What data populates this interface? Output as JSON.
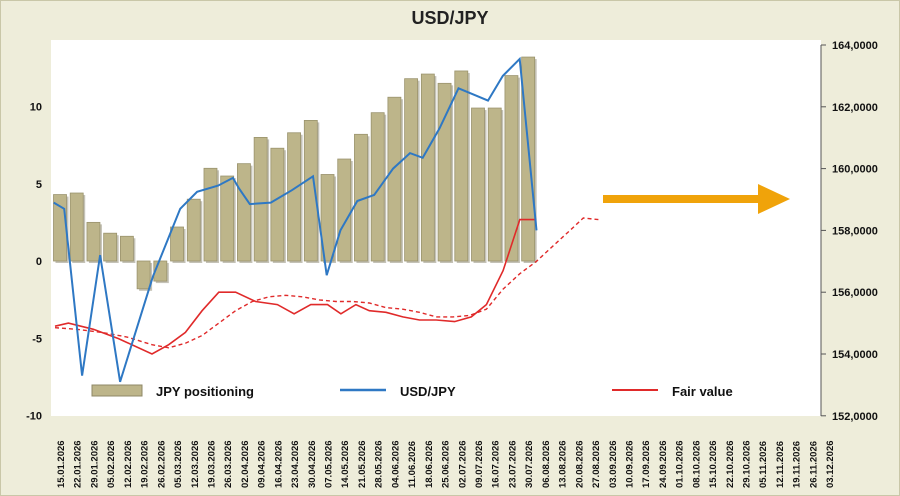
{
  "chart_data": {
    "type": "bar",
    "title": "USD/JPY",
    "xlabel": "",
    "ylabel": "",
    "ylim": [
      -10,
      14
    ],
    "y2lim": [
      152,
      164
    ],
    "yticks": [
      "10",
      "5",
      "0",
      "-5",
      "-10"
    ],
    "y2ticks": [
      "164,0000",
      "162,0000",
      "160,0000",
      "158,0000",
      "156,0000",
      "154,0000",
      "152,0000"
    ],
    "grid": false,
    "legend": "bottom",
    "x_labels": [
      "15.01.2026",
      "22.01.2026",
      "29.01.2026",
      "05.02.2026",
      "12.02.2026",
      "19.02.2026",
      "26.02.2026",
      "05.03.2026",
      "12.03.2026",
      "19.03.2026",
      "26.03.2026",
      "02.04.2026",
      "09.04.2026",
      "16.04.2026",
      "23.04.2026",
      "30.04.2026",
      "07.05.2026",
      "14.05.2026",
      "21.05.2026",
      "28.05.2026",
      "04.06.2026",
      "11.06.2026",
      "18.06.2026",
      "25.06.2026",
      "02.07.2026",
      "09.07.2026",
      "16.07.2026",
      "23.07.2026",
      "30.07.2026",
      "06.08.2026",
      "13.08.2026",
      "20.08.2026",
      "27.08.2026",
      "03.09.2026",
      "10.09.2026",
      "17.09.2026",
      "24.09.2026",
      "01.10.2026",
      "08.10.2026",
      "15.10.2026",
      "22.10.2026",
      "29.10.2026",
      "05.11.2026",
      "12.11.2026",
      "19.11.2026",
      "26.11.2026",
      "03.12.2026"
    ],
    "series": [
      {
        "name": "JPY positioning",
        "kind": "bar",
        "axis": "left",
        "color": "#bdb58a",
        "values": [
          4.3,
          4.4,
          2.5,
          1.8,
          1.6,
          -1.8,
          -1.3,
          2.2,
          4.0,
          6.0,
          5.5,
          6.3,
          8.0,
          7.3,
          8.3,
          9.1,
          5.6,
          6.6,
          8.2,
          9.6,
          10.6,
          11.8,
          12.1,
          11.5,
          12.3,
          9.9,
          9.9,
          12.0,
          13.2,
          null,
          null,
          null,
          null,
          null,
          null,
          null,
          null,
          null,
          null,
          null,
          null,
          null,
          null,
          null,
          null,
          null,
          null
        ]
      },
      {
        "name": "USD/JPY",
        "kind": "line",
        "axis": "right",
        "color": "#2e78c4",
        "x": [
          0.0,
          0.35,
          1.1,
          1.6,
          2.2,
          2.9,
          3.6,
          4.4,
          5.0,
          5.7,
          6.4,
          7.0,
          7.6,
          8.2,
          9.0,
          9.5,
          10.0,
          10.4,
          10.9,
          11.4,
          12.0,
          12.6,
          13.2,
          14.0,
          14.6,
          15.1,
          15.5,
          16.0,
          16.7,
          17.3,
          17.9,
          18.4,
          19.0,
          19.6,
          20.2,
          20.8,
          21.4,
          22.0,
          22.6,
          23.2,
          23.8,
          24.2,
          24.8,
          25.4,
          26.0,
          26.5,
          27.2,
          27.8,
          28.2,
          28.55
        ]
      },
      {
        "name": "Fair value",
        "kind": "line",
        "axis": "right",
        "color": "#e02a2a"
      }
    ]
  },
  "legend": {
    "positioning_label": "JPY positioning",
    "usdjpy_label": "USD/JPY",
    "fair_value_label": "Fair value"
  }
}
